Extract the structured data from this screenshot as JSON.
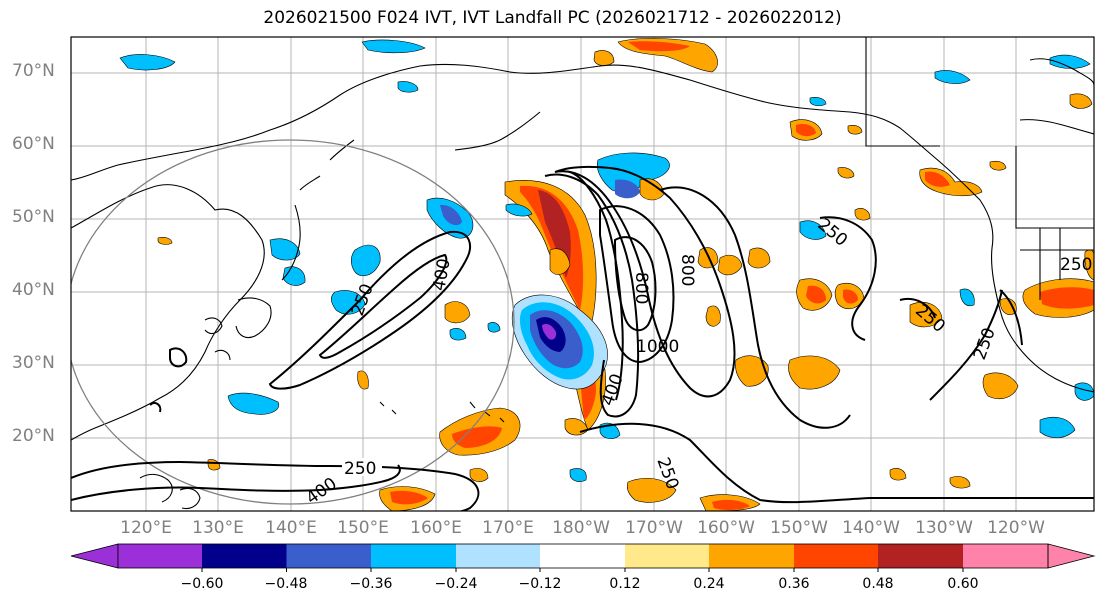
{
  "title": "2026021500 F024 IVT, IVT Landfall PC (2026021712 - 2026022012)",
  "latitude_labels": [
    "70°N",
    "60°N",
    "50°N",
    "40°N",
    "30°N",
    "20°N"
  ],
  "longitude_labels": [
    "120°E",
    "130°E",
    "140°E",
    "150°E",
    "160°E",
    "170°E",
    "180°W",
    "170°W",
    "160°W",
    "150°W",
    "140°W",
    "130°W",
    "120°W"
  ],
  "contour_labels": [
    "250",
    "250",
    "250",
    "250",
    "400",
    "400",
    "400",
    "800",
    "800",
    "1000",
    "250",
    "250",
    "250"
  ],
  "colorbar": {
    "ticks": [
      "−0.60",
      "−0.48",
      "−0.36",
      "−0.24",
      "−0.12",
      "0.12",
      "0.24",
      "0.36",
      "0.48",
      "0.60"
    ],
    "colors": [
      "#9b30d9",
      "#00008b",
      "#3a5fcd",
      "#00bfff",
      "#b0e2ff",
      "#ffffff",
      "#ffe98a",
      "#ffa500",
      "#ff4500",
      "#b22222",
      "#ff82ab"
    ]
  }
}
